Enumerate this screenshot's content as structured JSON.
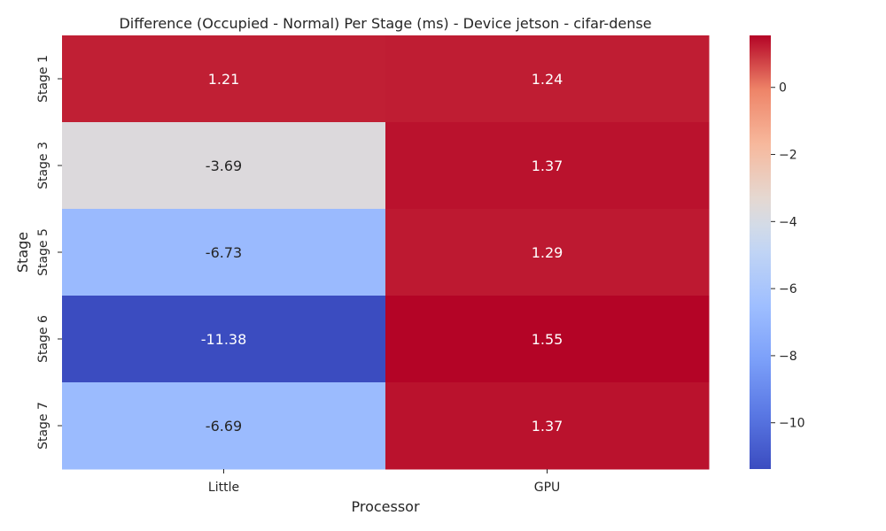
{
  "chart_data": {
    "type": "heatmap",
    "title": "Difference (Occupied - Normal) Per Stage (ms) - Device jetson - cifar-dense",
    "xlabel": "Processor",
    "ylabel": "Stage",
    "x_categories": [
      "Little",
      "GPU"
    ],
    "y_categories": [
      "Stage 1",
      "Stage 3",
      "Stage 5",
      "Stage 6",
      "Stage 7"
    ],
    "values": [
      [
        1.21,
        1.24
      ],
      [
        -3.69,
        1.37
      ],
      [
        -6.73,
        1.29
      ],
      [
        -11.38,
        1.55
      ],
      [
        -6.69,
        1.37
      ]
    ],
    "value_labels": [
      [
        "1.21",
        "1.24"
      ],
      [
        "-3.69",
        "1.37"
      ],
      [
        "-6.73",
        "1.29"
      ],
      [
        "-11.38",
        "1.55"
      ],
      [
        "-6.69",
        "1.37"
      ]
    ],
    "colormap": "coolwarm",
    "color_range": [
      -11.38,
      1.55
    ],
    "colorbar_ticks": [
      0,
      -2,
      -4,
      -6,
      -8,
      -10
    ],
    "colorbar_tick_labels": [
      "0",
      "−2",
      "−4",
      "−6",
      "−8",
      "−10"
    ],
    "grid": false
  }
}
